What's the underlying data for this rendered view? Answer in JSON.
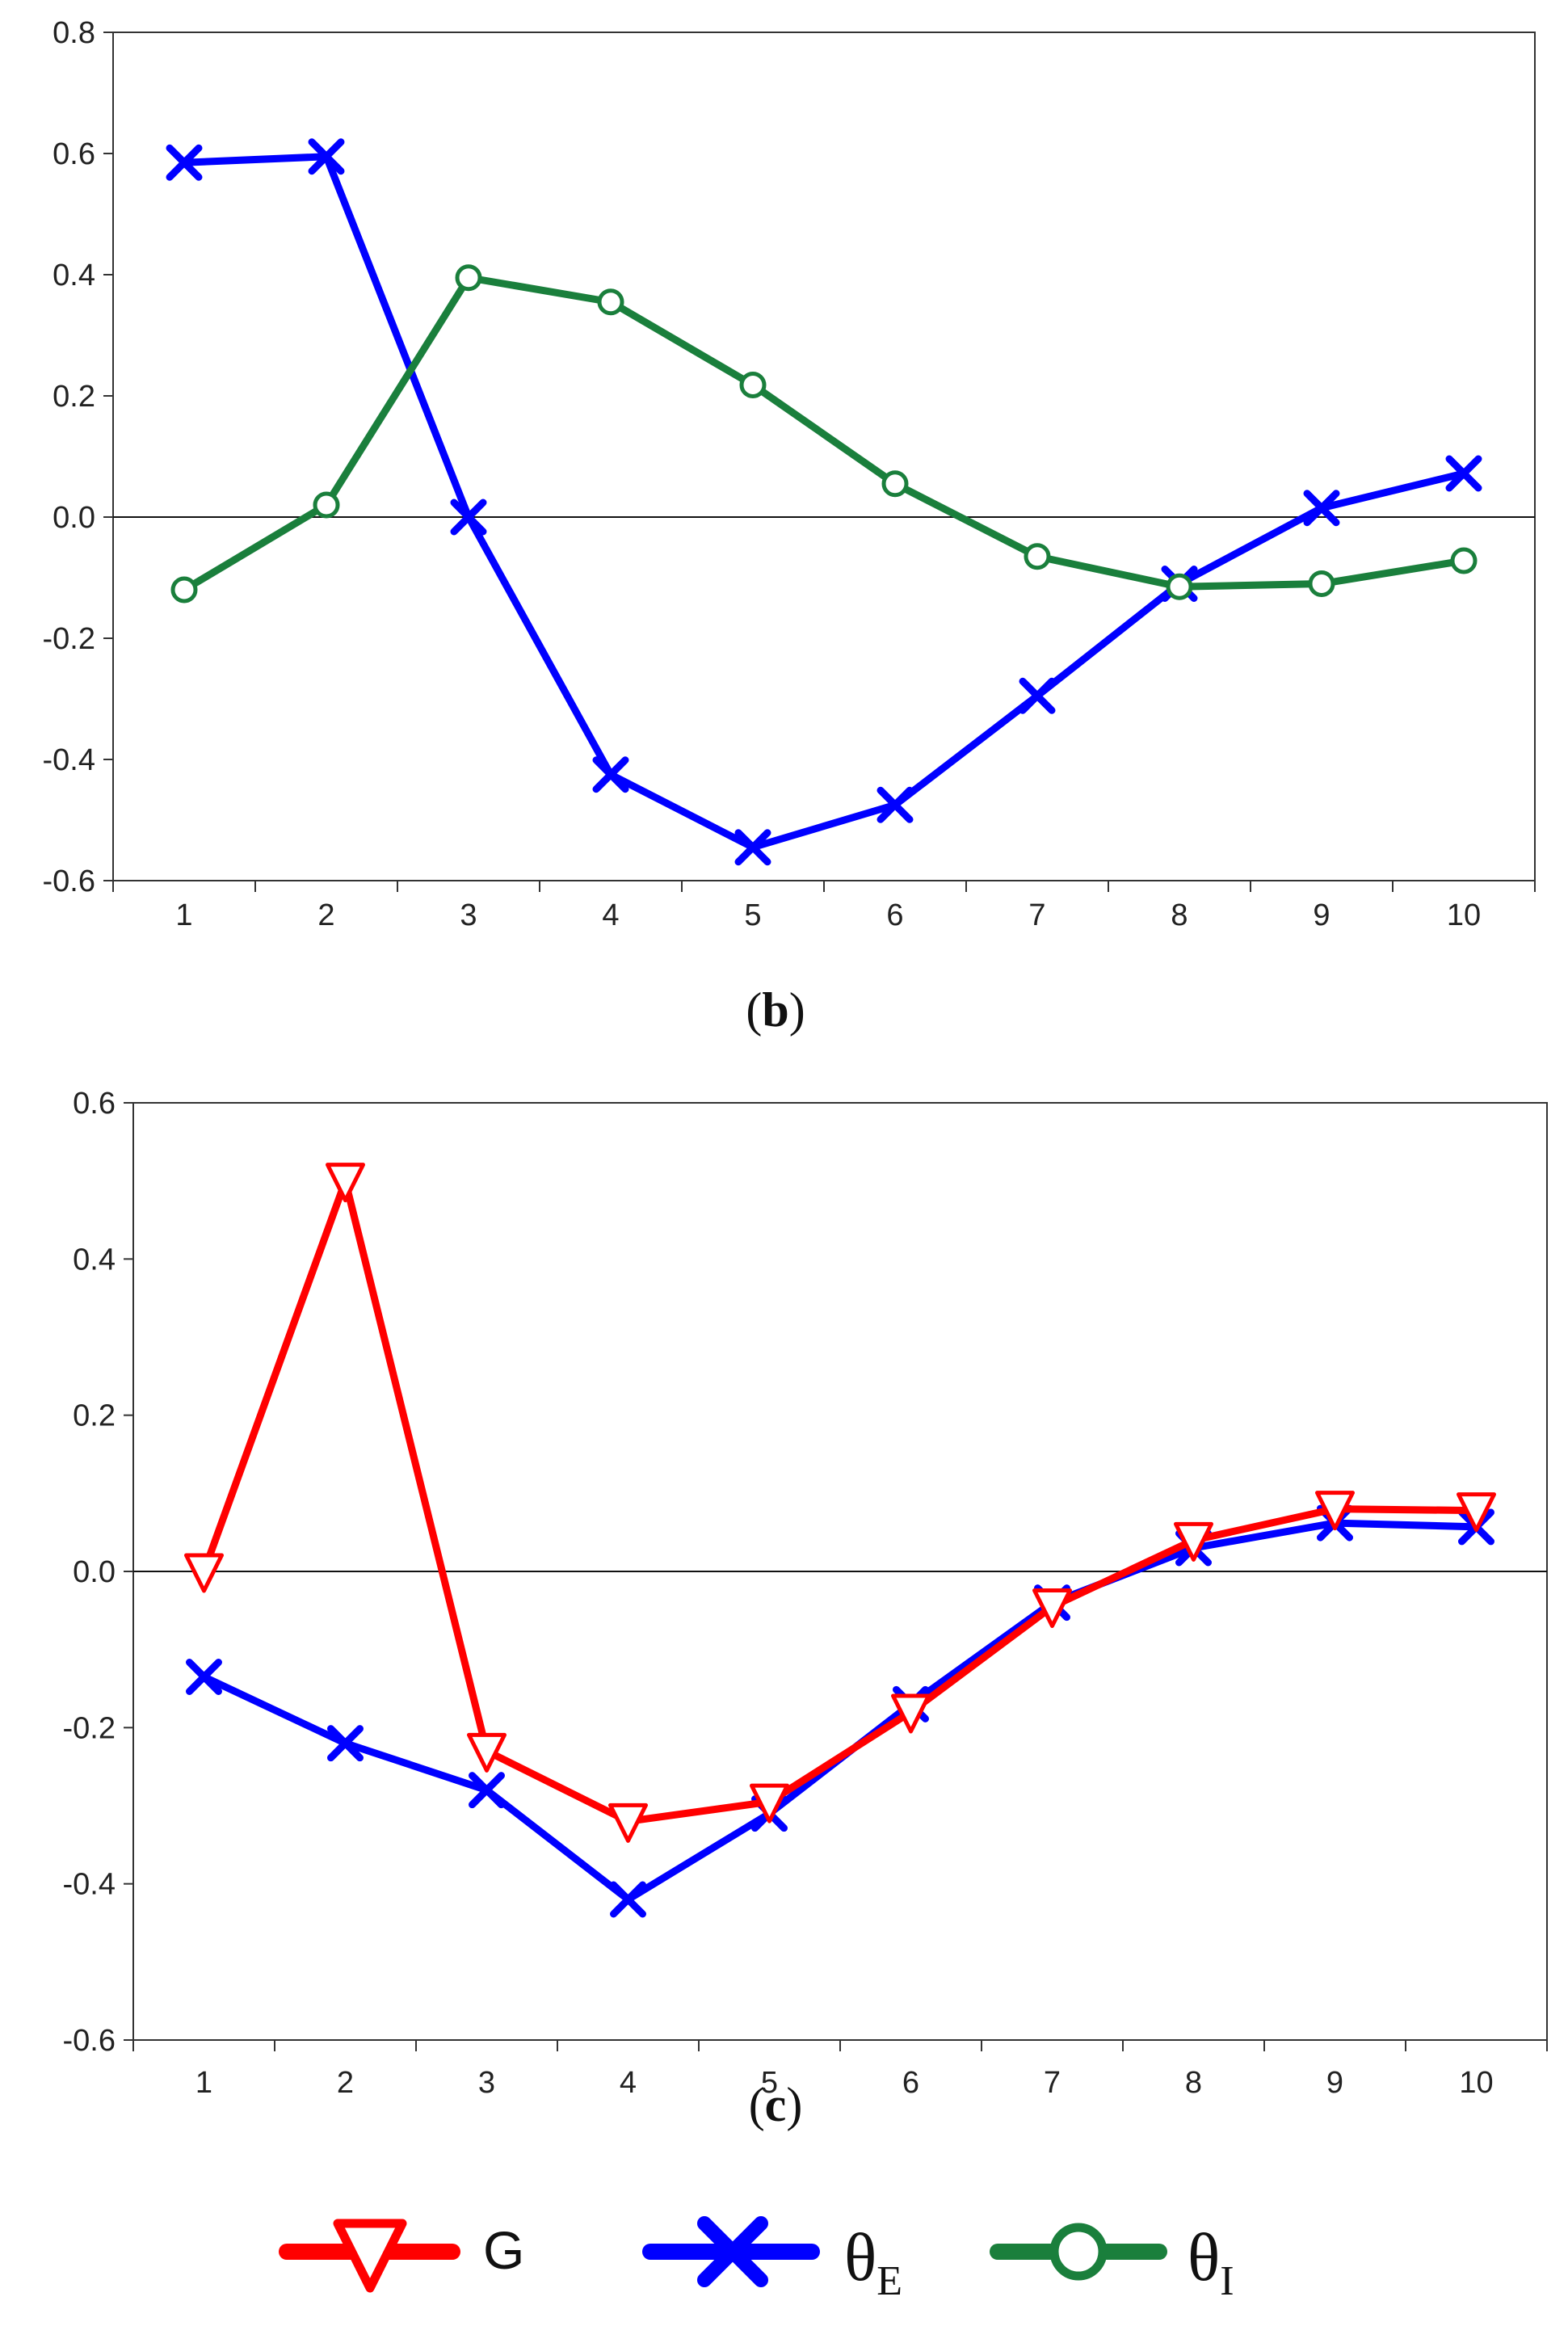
{
  "chart_data": [
    {
      "type": "line",
      "panel_label": "b",
      "categories": [
        "1",
        "2",
        "3",
        "4",
        "5",
        "6",
        "7",
        "8",
        "9",
        "10"
      ],
      "ylim": [
        -0.6,
        0.8
      ],
      "yticks": [
        "-0.6",
        "-0.4",
        "-0.2",
        "0.0",
        "0.2",
        "0.4",
        "0.6",
        "0.8"
      ],
      "ytick_values": [
        -0.6,
        -0.4,
        -0.2,
        0.0,
        0.2,
        0.4,
        0.6,
        0.8
      ],
      "zero_line": true,
      "series": [
        {
          "name": "θE",
          "key": "thetaE",
          "marker": "x",
          "color": "#0000ff",
          "values": [
            0.585,
            0.595,
            0.0,
            -0.425,
            -0.545,
            -0.475,
            -0.295,
            -0.11,
            0.015,
            0.072
          ]
        },
        {
          "name": "θI",
          "key": "thetaI",
          "marker": "circle",
          "color": "#1a7f3c",
          "values": [
            -0.12,
            0.02,
            0.395,
            0.355,
            0.218,
            0.055,
            -0.065,
            -0.115,
            -0.11,
            -0.072
          ]
        }
      ]
    },
    {
      "type": "line",
      "panel_label": "c",
      "categories": [
        "1",
        "2",
        "3",
        "4",
        "5",
        "6",
        "7",
        "8",
        "9",
        "10"
      ],
      "ylim": [
        -0.6,
        0.6
      ],
      "yticks": [
        "-0.6",
        "-0.4",
        "-0.2",
        "0.0",
        "0.2",
        "0.4",
        "0.6"
      ],
      "ytick_values": [
        -0.6,
        -0.4,
        -0.2,
        0.0,
        0.2,
        0.4,
        0.6
      ],
      "zero_line": true,
      "series": [
        {
          "name": "θE",
          "key": "thetaE",
          "marker": "x",
          "color": "#0000ff",
          "values": [
            -0.135,
            -0.22,
            -0.28,
            -0.42,
            -0.31,
            -0.17,
            -0.04,
            0.03,
            0.062,
            0.057
          ]
        },
        {
          "name": "G",
          "key": "G",
          "marker": "triangle-down",
          "color": "#ff0000",
          "values": [
            0.0,
            0.5,
            -0.23,
            -0.32,
            -0.295,
            -0.18,
            -0.045,
            0.04,
            0.08,
            0.078
          ]
        }
      ]
    }
  ],
  "legend": {
    "items": [
      {
        "key": "G",
        "label": "G",
        "color": "#ff0000",
        "marker": "triangle-down"
      },
      {
        "key": "thetaE",
        "label": "θ",
        "subscript": "E",
        "color": "#0000ff",
        "marker": "x"
      },
      {
        "key": "thetaI",
        "label": "θ",
        "subscript": "I",
        "color": "#1a7f3c",
        "marker": "circle"
      }
    ]
  }
}
